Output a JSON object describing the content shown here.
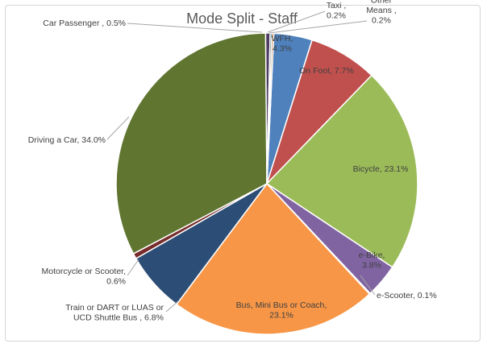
{
  "chart_data": {
    "type": "pie",
    "title": "Mode Split - Staff",
    "slices": [
      {
        "label": "WFH",
        "value": 4.3,
        "display": [
          "WFH,",
          "4.3%"
        ],
        "color": "#4f81bd"
      },
      {
        "label": "On Foot",
        "value": 7.7,
        "display": [
          "On Foot, 7.7%"
        ],
        "color": "#c0504d"
      },
      {
        "label": "Bicycle",
        "value": 23.1,
        "display": [
          "Bicycle, 23.1%"
        ],
        "color": "#9bbb59"
      },
      {
        "label": "e-Bike",
        "value": 3.8,
        "display": [
          "e-Bike,",
          "3.8%"
        ],
        "color": "#8064a2"
      },
      {
        "label": "e-Scooter",
        "value": 0.1,
        "display": [
          "e-Scooter, 0.1%"
        ],
        "color": "#4bacc6"
      },
      {
        "label": "Bus, Mini Bus or Coach",
        "value": 23.1,
        "display": [
          "Bus, Mini Bus or Coach,",
          "23.1%"
        ],
        "color": "#f79646"
      },
      {
        "label": "Train or DART or LUAS or UCD Shuttle Bus",
        "value": 6.8,
        "display": [
          "Train or DART or LUAS or",
          "UCD Shuttle Bus , 6.8%"
        ],
        "color": "#2c4d75"
      },
      {
        "label": "Motorcycle or Scooter",
        "value": 0.6,
        "display": [
          "Motorcycle or Scooter,",
          "0.6%"
        ],
        "color": "#772c2a"
      },
      {
        "label": "Driving a Car",
        "value": 34.0,
        "display": [
          "Driving a Car, 34.0%"
        ],
        "color": "#5f7530"
      },
      {
        "label": "Car Passenger",
        "value": 0.5,
        "display": [
          "Car Passenger , 0.5%"
        ],
        "color": "#4d3b62"
      },
      {
        "label": "Taxi",
        "value": 0.2,
        "display": [
          "Taxi ,",
          "0.2%"
        ],
        "color": "#276a7c"
      },
      {
        "label": "Other Means",
        "value": 0.2,
        "display": [
          "Other",
          "Means ,",
          "0.2%"
        ],
        "color": "#b65708"
      }
    ]
  }
}
